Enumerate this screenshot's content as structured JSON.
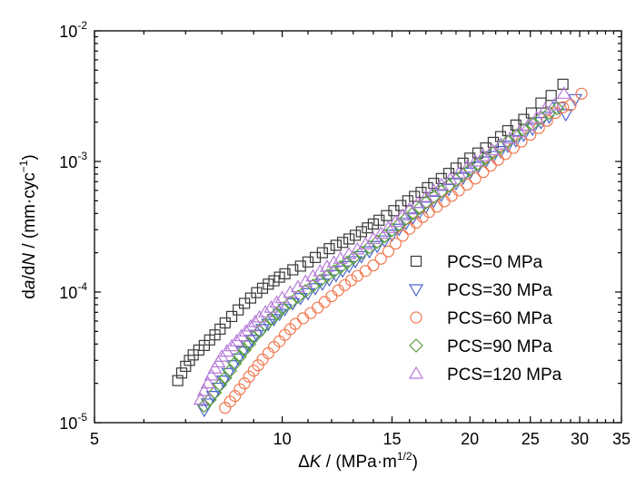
{
  "chart_data": {
    "type": "scatter",
    "title": "",
    "x_scale": "log",
    "y_scale": "log",
    "xlim": [
      5,
      35
    ],
    "ylim": [
      1e-05,
      0.01
    ],
    "x_ticks": [
      5,
      10,
      15,
      20,
      25,
      30,
      35
    ],
    "x_tick_labels": [
      "5",
      "10",
      "15",
      "20",
      "25",
      "30",
      "35"
    ],
    "y_ticks": [
      1e-05,
      0.0001,
      0.001,
      0.01
    ],
    "y_tick_labels": [
      {
        "base": "10",
        "exp": "-5"
      },
      {
        "base": "10",
        "exp": "-4"
      },
      {
        "base": "10",
        "exp": "-3"
      },
      {
        "base": "10",
        "exp": "-2"
      }
    ],
    "xlabel": {
      "delta": "Δ",
      "var": "K",
      "rest": " / (MPa·m",
      "sup": "1/2",
      "close": ")"
    },
    "ylabel": {
      "d1": "d",
      "a": "a",
      "slash": "/d",
      "N": "N",
      "rest": " / (mm·cyc",
      "sup": "−1",
      "close": ")"
    },
    "legend_position": "lower-right",
    "grid": false,
    "series": [
      {
        "name": "PCS=0 MPa",
        "marker": "square",
        "color": "#3a3a3a",
        "points": [
          [
            6.8,
            2.1e-05
          ],
          [
            6.9,
            2.4e-05
          ],
          [
            7.0,
            2.7e-05
          ],
          [
            7.1,
            3e-05
          ],
          [
            7.2,
            3.3e-05
          ],
          [
            7.35,
            3.6e-05
          ],
          [
            7.5,
            3.9e-05
          ],
          [
            7.65,
            4.3e-05
          ],
          [
            7.8,
            4.7e-05
          ],
          [
            7.95,
            5.2e-05
          ],
          [
            8.1,
            5.8e-05
          ],
          [
            8.3,
            6.5e-05
          ],
          [
            8.5,
            7.3e-05
          ],
          [
            8.7,
            8.2e-05
          ],
          [
            8.9,
            9e-05
          ],
          [
            9.1,
            9.9e-05
          ],
          [
            9.3,
            0.000107
          ],
          [
            9.5,
            0.000115
          ],
          [
            9.7,
            0.000122
          ],
          [
            9.9,
            0.00013
          ],
          [
            10.1,
            0.000138
          ],
          [
            10.4,
            0.000148
          ],
          [
            10.7,
            0.000158
          ],
          [
            11.0,
            0.00017
          ],
          [
            11.3,
            0.000184
          ],
          [
            11.6,
            0.0002
          ],
          [
            11.9,
            0.000215
          ],
          [
            12.2,
            0.000228
          ],
          [
            12.5,
            0.00024
          ],
          [
            12.8,
            0.000255
          ],
          [
            13.1,
            0.000272
          ],
          [
            13.4,
            0.00029
          ],
          [
            13.7,
            0.00031
          ],
          [
            14.0,
            0.000332
          ],
          [
            14.3,
            0.000355
          ],
          [
            14.7,
            0.000385
          ],
          [
            15.1,
            0.00042
          ],
          [
            15.5,
            0.00046
          ],
          [
            15.9,
            0.0005
          ],
          [
            16.3,
            0.00054
          ],
          [
            16.7,
            0.00058
          ],
          [
            17.1,
            0.00063
          ],
          [
            17.5,
            0.00068
          ],
          [
            18.0,
            0.00074
          ],
          [
            18.5,
            0.00081
          ],
          [
            19.0,
            0.00089
          ],
          [
            19.5,
            0.00097
          ],
          [
            20.0,
            0.00106
          ],
          [
            20.6,
            0.00116
          ],
          [
            21.2,
            0.00127
          ],
          [
            21.8,
            0.0014
          ],
          [
            22.4,
            0.00155
          ],
          [
            23.0,
            0.00172
          ],
          [
            23.7,
            0.0019
          ],
          [
            24.4,
            0.0021
          ],
          [
            25.1,
            0.00235
          ],
          [
            26.0,
            0.0028
          ],
          [
            27.0,
            0.0032
          ],
          [
            28.2,
            0.0039
          ]
        ]
      },
      {
        "name": "PCS=30 MPa",
        "marker": "triangle-down",
        "color": "#4d66c9",
        "points": [
          [
            7.5,
            1.25e-05
          ],
          [
            7.6,
            1.4e-05
          ],
          [
            7.75,
            1.6e-05
          ],
          [
            7.9,
            1.85e-05
          ],
          [
            8.05,
            2.1e-05
          ],
          [
            8.2,
            2.4e-05
          ],
          [
            8.35,
            2.75e-05
          ],
          [
            8.5,
            3.1e-05
          ],
          [
            8.65,
            3.5e-05
          ],
          [
            8.8,
            3.9e-05
          ],
          [
            8.95,
            4.3e-05
          ],
          [
            9.1,
            4.7e-05
          ],
          [
            9.3,
            5.2e-05
          ],
          [
            9.5,
            5.7e-05
          ],
          [
            9.7,
            6.2e-05
          ],
          [
            9.9,
            6.8e-05
          ],
          [
            10.1,
            7.4e-05
          ],
          [
            10.4,
            8.2e-05
          ],
          [
            10.7,
            9e-05
          ],
          [
            11.0,
            9.8e-05
          ],
          [
            11.3,
            0.000107
          ],
          [
            11.6,
            0.000116
          ],
          [
            11.9,
            0.000125
          ],
          [
            12.2,
            0.000135
          ],
          [
            12.5,
            0.000146
          ],
          [
            12.8,
            0.000158
          ],
          [
            13.1,
            0.000172
          ],
          [
            13.4,
            0.000188
          ],
          [
            13.8,
            0.000205
          ],
          [
            14.2,
            0.000225
          ],
          [
            14.6,
            0.000248
          ],
          [
            15.0,
            0.000275
          ],
          [
            15.4,
            0.000305
          ],
          [
            15.8,
            0.000338
          ],
          [
            16.2,
            0.000372
          ],
          [
            16.6,
            0.00041
          ],
          [
            17.0,
            0.00045
          ],
          [
            17.5,
            0.0005
          ],
          [
            18.0,
            0.000555
          ],
          [
            18.5,
            0.000615
          ],
          [
            19.0,
            0.00068
          ],
          [
            19.5,
            0.00075
          ],
          [
            20.0,
            0.00082
          ],
          [
            20.6,
            0.00091
          ],
          [
            21.2,
            0.001
          ],
          [
            21.8,
            0.0011
          ],
          [
            22.4,
            0.0012
          ],
          [
            23.0,
            0.00132
          ],
          [
            23.7,
            0.00145
          ],
          [
            24.4,
            0.0016
          ],
          [
            25.2,
            0.00178
          ],
          [
            26.0,
            0.002
          ],
          [
            26.8,
            0.0022
          ],
          [
            27.8,
            0.0026
          ],
          [
            28.5,
            0.0023
          ],
          [
            29.5,
            0.003
          ]
        ]
      },
      {
        "name": "PCS=60 MPa",
        "marker": "circle",
        "color": "#f07850",
        "points": [
          [
            8.1,
            1.3e-05
          ],
          [
            8.25,
            1.45e-05
          ],
          [
            8.4,
            1.6e-05
          ],
          [
            8.55,
            1.8e-05
          ],
          [
            8.7,
            2e-05
          ],
          [
            8.85,
            2.25e-05
          ],
          [
            9.0,
            2.5e-05
          ],
          [
            9.15,
            2.75e-05
          ],
          [
            9.3,
            3.05e-05
          ],
          [
            9.5,
            3.4e-05
          ],
          [
            9.7,
            3.8e-05
          ],
          [
            9.9,
            4.2e-05
          ],
          [
            10.1,
            4.7e-05
          ],
          [
            10.3,
            5.2e-05
          ],
          [
            10.5,
            5.7e-05
          ],
          [
            10.8,
            6.3e-05
          ],
          [
            11.1,
            6.9e-05
          ],
          [
            11.4,
            7.6e-05
          ],
          [
            11.7,
            8.4e-05
          ],
          [
            12.0,
            9.3e-05
          ],
          [
            12.3,
            0.000103
          ],
          [
            12.6,
            0.000113
          ],
          [
            12.9,
            0.000123
          ],
          [
            13.2,
            0.000133
          ],
          [
            13.6,
            0.000145
          ],
          [
            14.0,
            0.00016
          ],
          [
            14.4,
            0.00018
          ],
          [
            14.8,
            0.000205
          ],
          [
            15.2,
            0.000235
          ],
          [
            15.6,
            0.00027
          ],
          [
            16.0,
            0.000305
          ],
          [
            16.4,
            0.00034
          ],
          [
            16.8,
            0.000375
          ],
          [
            17.2,
            0.00041
          ],
          [
            17.7,
            0.00045
          ],
          [
            18.2,
            0.000495
          ],
          [
            18.7,
            0.000545
          ],
          [
            19.2,
            0.0006
          ],
          [
            19.8,
            0.000665
          ],
          [
            20.4,
            0.00074
          ],
          [
            21.0,
            0.00083
          ],
          [
            21.6,
            0.00093
          ],
          [
            22.2,
            0.00103
          ],
          [
            22.8,
            0.00114
          ],
          [
            23.5,
            0.00127
          ],
          [
            24.2,
            0.00142
          ],
          [
            25.0,
            0.0016
          ],
          [
            25.8,
            0.0018
          ],
          [
            26.6,
            0.00205
          ],
          [
            27.4,
            0.00235
          ],
          [
            28.2,
            0.0026
          ],
          [
            29.0,
            0.0027
          ],
          [
            30.2,
            0.0033
          ]
        ]
      },
      {
        "name": "PCS=90 MPa",
        "marker": "diamond",
        "color": "#5aa03c",
        "points": [
          [
            7.5,
            1.35e-05
          ],
          [
            7.65,
            1.5e-05
          ],
          [
            7.8,
            1.7e-05
          ],
          [
            7.95,
            1.95e-05
          ],
          [
            8.1,
            2.2e-05
          ],
          [
            8.25,
            2.5e-05
          ],
          [
            8.4,
            2.85e-05
          ],
          [
            8.55,
            3.2e-05
          ],
          [
            8.7,
            3.6e-05
          ],
          [
            8.85,
            4e-05
          ],
          [
            9.0,
            4.5e-05
          ],
          [
            9.2,
            5e-05
          ],
          [
            9.4,
            5.6e-05
          ],
          [
            9.6,
            6.2e-05
          ],
          [
            9.8,
            6.8e-05
          ],
          [
            10.0,
            7.5e-05
          ],
          [
            10.3,
            8.3e-05
          ],
          [
            10.6,
            9.2e-05
          ],
          [
            10.9,
            0.000102
          ],
          [
            11.2,
            0.000112
          ],
          [
            11.5,
            0.000122
          ],
          [
            11.8,
            0.000133
          ],
          [
            12.1,
            0.000144
          ],
          [
            12.4,
            0.000155
          ],
          [
            12.7,
            0.000168
          ],
          [
            13.0,
            0.000182
          ],
          [
            13.4,
            0.0002
          ],
          [
            13.8,
            0.00022
          ],
          [
            14.2,
            0.000242
          ],
          [
            14.6,
            0.000268
          ],
          [
            15.0,
            0.000298
          ],
          [
            15.4,
            0.00033
          ],
          [
            15.8,
            0.000365
          ],
          [
            16.2,
            0.0004
          ],
          [
            16.6,
            0.00044
          ],
          [
            17.0,
            0.000485
          ],
          [
            17.5,
            0.000535
          ],
          [
            18.0,
            0.00059
          ],
          [
            18.5,
            0.00065
          ],
          [
            19.0,
            0.00072
          ],
          [
            19.5,
            0.000795
          ],
          [
            20.0,
            0.00087
          ],
          [
            20.6,
            0.00096
          ],
          [
            21.2,
            0.00106
          ],
          [
            21.8,
            0.00117
          ],
          [
            22.4,
            0.00129
          ],
          [
            23.0,
            0.00142
          ],
          [
            23.7,
            0.00157
          ],
          [
            24.4,
            0.00174
          ],
          [
            25.2,
            0.00193
          ],
          [
            26.0,
            0.00215
          ],
          [
            26.8,
            0.00235
          ],
          [
            27.6,
            0.00255
          ]
        ]
      },
      {
        "name": "PCS=120 MPa",
        "marker": "triangle-up",
        "color": "#b57ad8",
        "points": [
          [
            7.4,
            1.5e-05
          ],
          [
            7.5,
            1.75e-05
          ],
          [
            7.6,
            2e-05
          ],
          [
            7.7,
            2.3e-05
          ],
          [
            7.8,
            2.6e-05
          ],
          [
            7.9,
            2.9e-05
          ],
          [
            8.0,
            3.2e-05
          ],
          [
            8.15,
            3.5e-05
          ],
          [
            8.3,
            3.85e-05
          ],
          [
            8.45,
            4.2e-05
          ],
          [
            8.6,
            4.6e-05
          ],
          [
            8.75,
            5e-05
          ],
          [
            8.9,
            5.45e-05
          ],
          [
            9.05,
            5.9e-05
          ],
          [
            9.2,
            6.4e-05
          ],
          [
            9.4,
            7e-05
          ],
          [
            9.6,
            7.6e-05
          ],
          [
            9.8,
            8.3e-05
          ],
          [
            10.0,
            9e-05
          ],
          [
            10.3,
            9.9e-05
          ],
          [
            10.6,
            0.000109
          ],
          [
            10.9,
            0.00012
          ],
          [
            11.2,
            0.000132
          ],
          [
            11.5,
            0.000144
          ],
          [
            11.8,
            0.000156
          ],
          [
            12.1,
            0.000168
          ],
          [
            12.4,
            0.00018
          ],
          [
            12.8,
            0.000195
          ],
          [
            13.2,
            0.000212
          ],
          [
            13.6,
            0.000232
          ],
          [
            14.0,
            0.000255
          ],
          [
            14.4,
            0.00028
          ],
          [
            14.8,
            0.00031
          ],
          [
            15.2,
            0.000345
          ],
          [
            15.6,
            0.000385
          ],
          [
            16.0,
            0.00043
          ],
          [
            16.5,
            0.00048
          ],
          [
            17.0,
            0.000535
          ],
          [
            17.5,
            0.000595
          ],
          [
            18.0,
            0.00066
          ],
          [
            18.6,
            0.00073
          ],
          [
            19.2,
            0.00081
          ],
          [
            19.8,
            0.0009
          ],
          [
            20.4,
            0.001
          ],
          [
            21.0,
            0.0011
          ],
          [
            21.7,
            0.00122
          ],
          [
            22.4,
            0.00135
          ],
          [
            23.2,
            0.0015
          ],
          [
            24.0,
            0.00168
          ],
          [
            24.8,
            0.00188
          ],
          [
            25.6,
            0.00215
          ],
          [
            26.4,
            0.0025
          ],
          [
            27.3,
            0.0027
          ],
          [
            28.3,
            0.0033
          ]
        ]
      }
    ]
  }
}
